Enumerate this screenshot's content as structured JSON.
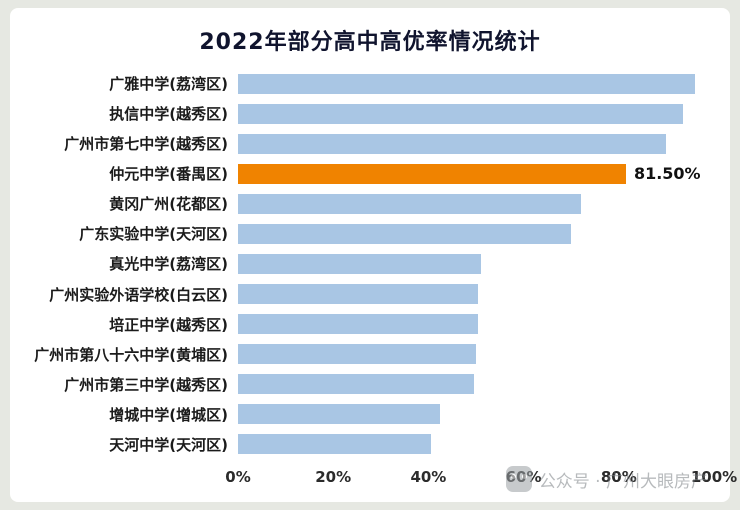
{
  "watermark": {
    "text": "公众号 · 广州大眼房产"
  },
  "chart_data": {
    "type": "bar",
    "orientation": "horizontal",
    "title": "2022年部分高中高优率情况统计",
    "categories": [
      "广雅中学(荔湾区)",
      "执信中学(越秀区)",
      "广州市第七中学(越秀区)",
      "仲元中学(番禺区)",
      "黄冈广州(花都区)",
      "广东实验中学(天河区)",
      "真光中学(荔湾区)",
      "广州实验外语学校(白云区)",
      "培正中学(越秀区)",
      "广州市第八十六中学(黄埔区)",
      "广州市第三中学(越秀区)",
      "增城中学(增城区)",
      "天河中学(天河区)"
    ],
    "values": [
      96,
      93.5,
      90,
      81.5,
      72,
      70,
      51,
      50.5,
      50.5,
      50,
      49.5,
      42.5,
      40.5
    ],
    "highlight_index": 3,
    "highlight_label": "81.50%",
    "bar_color": "#a9c6e4",
    "highlight_color": "#f08300",
    "xlabel": "",
    "ylabel": "",
    "xlim": [
      0,
      100
    ],
    "x_ticks": [
      "0%",
      "20%",
      "40%",
      "60%",
      "80%",
      "100%"
    ],
    "grid": false,
    "legend": false
  }
}
